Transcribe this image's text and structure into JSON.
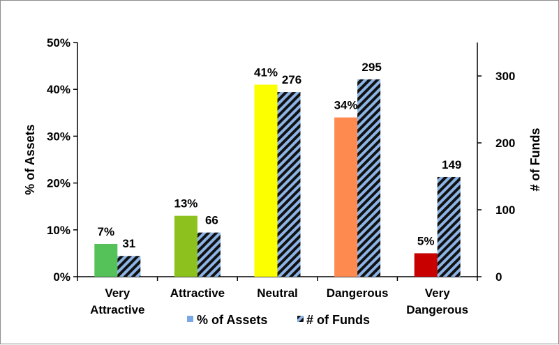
{
  "chart_data": {
    "type": "bar",
    "categories": [
      "Very Attractive",
      "Attractive",
      "Neutral",
      "Dangerous",
      "Very Dangerous"
    ],
    "series": [
      {
        "name": "% of Assets",
        "axis": "left",
        "values": [
          7,
          13,
          41,
          34,
          5
        ],
        "labels": [
          "7%",
          "13%",
          "41%",
          "34%",
          "5%"
        ],
        "colors": [
          "#55c159",
          "#8dc21e",
          "#fcff00",
          "#ff8a4f",
          "#c80000"
        ],
        "legend_color": "#7aa7e8"
      },
      {
        "name": "# of Funds",
        "axis": "right",
        "values": [
          31,
          66,
          276,
          295,
          149
        ],
        "labels": [
          "31",
          "66",
          "276",
          "295",
          "149"
        ],
        "pattern": "diagonal-stripes",
        "colors": [
          "#111111",
          "#8db4e6"
        ]
      }
    ],
    "y_left": {
      "label": "% of Assets",
      "range": [
        0,
        50
      ],
      "ticks": [
        "0%",
        "10%",
        "20%",
        "30%",
        "40%",
        "50%"
      ]
    },
    "y_right": {
      "label": "# of Funds",
      "range": [
        0,
        350
      ],
      "ticks": [
        "0",
        "100",
        "200",
        "300"
      ]
    },
    "grid": false,
    "legend": {
      "position": "bottom"
    }
  }
}
